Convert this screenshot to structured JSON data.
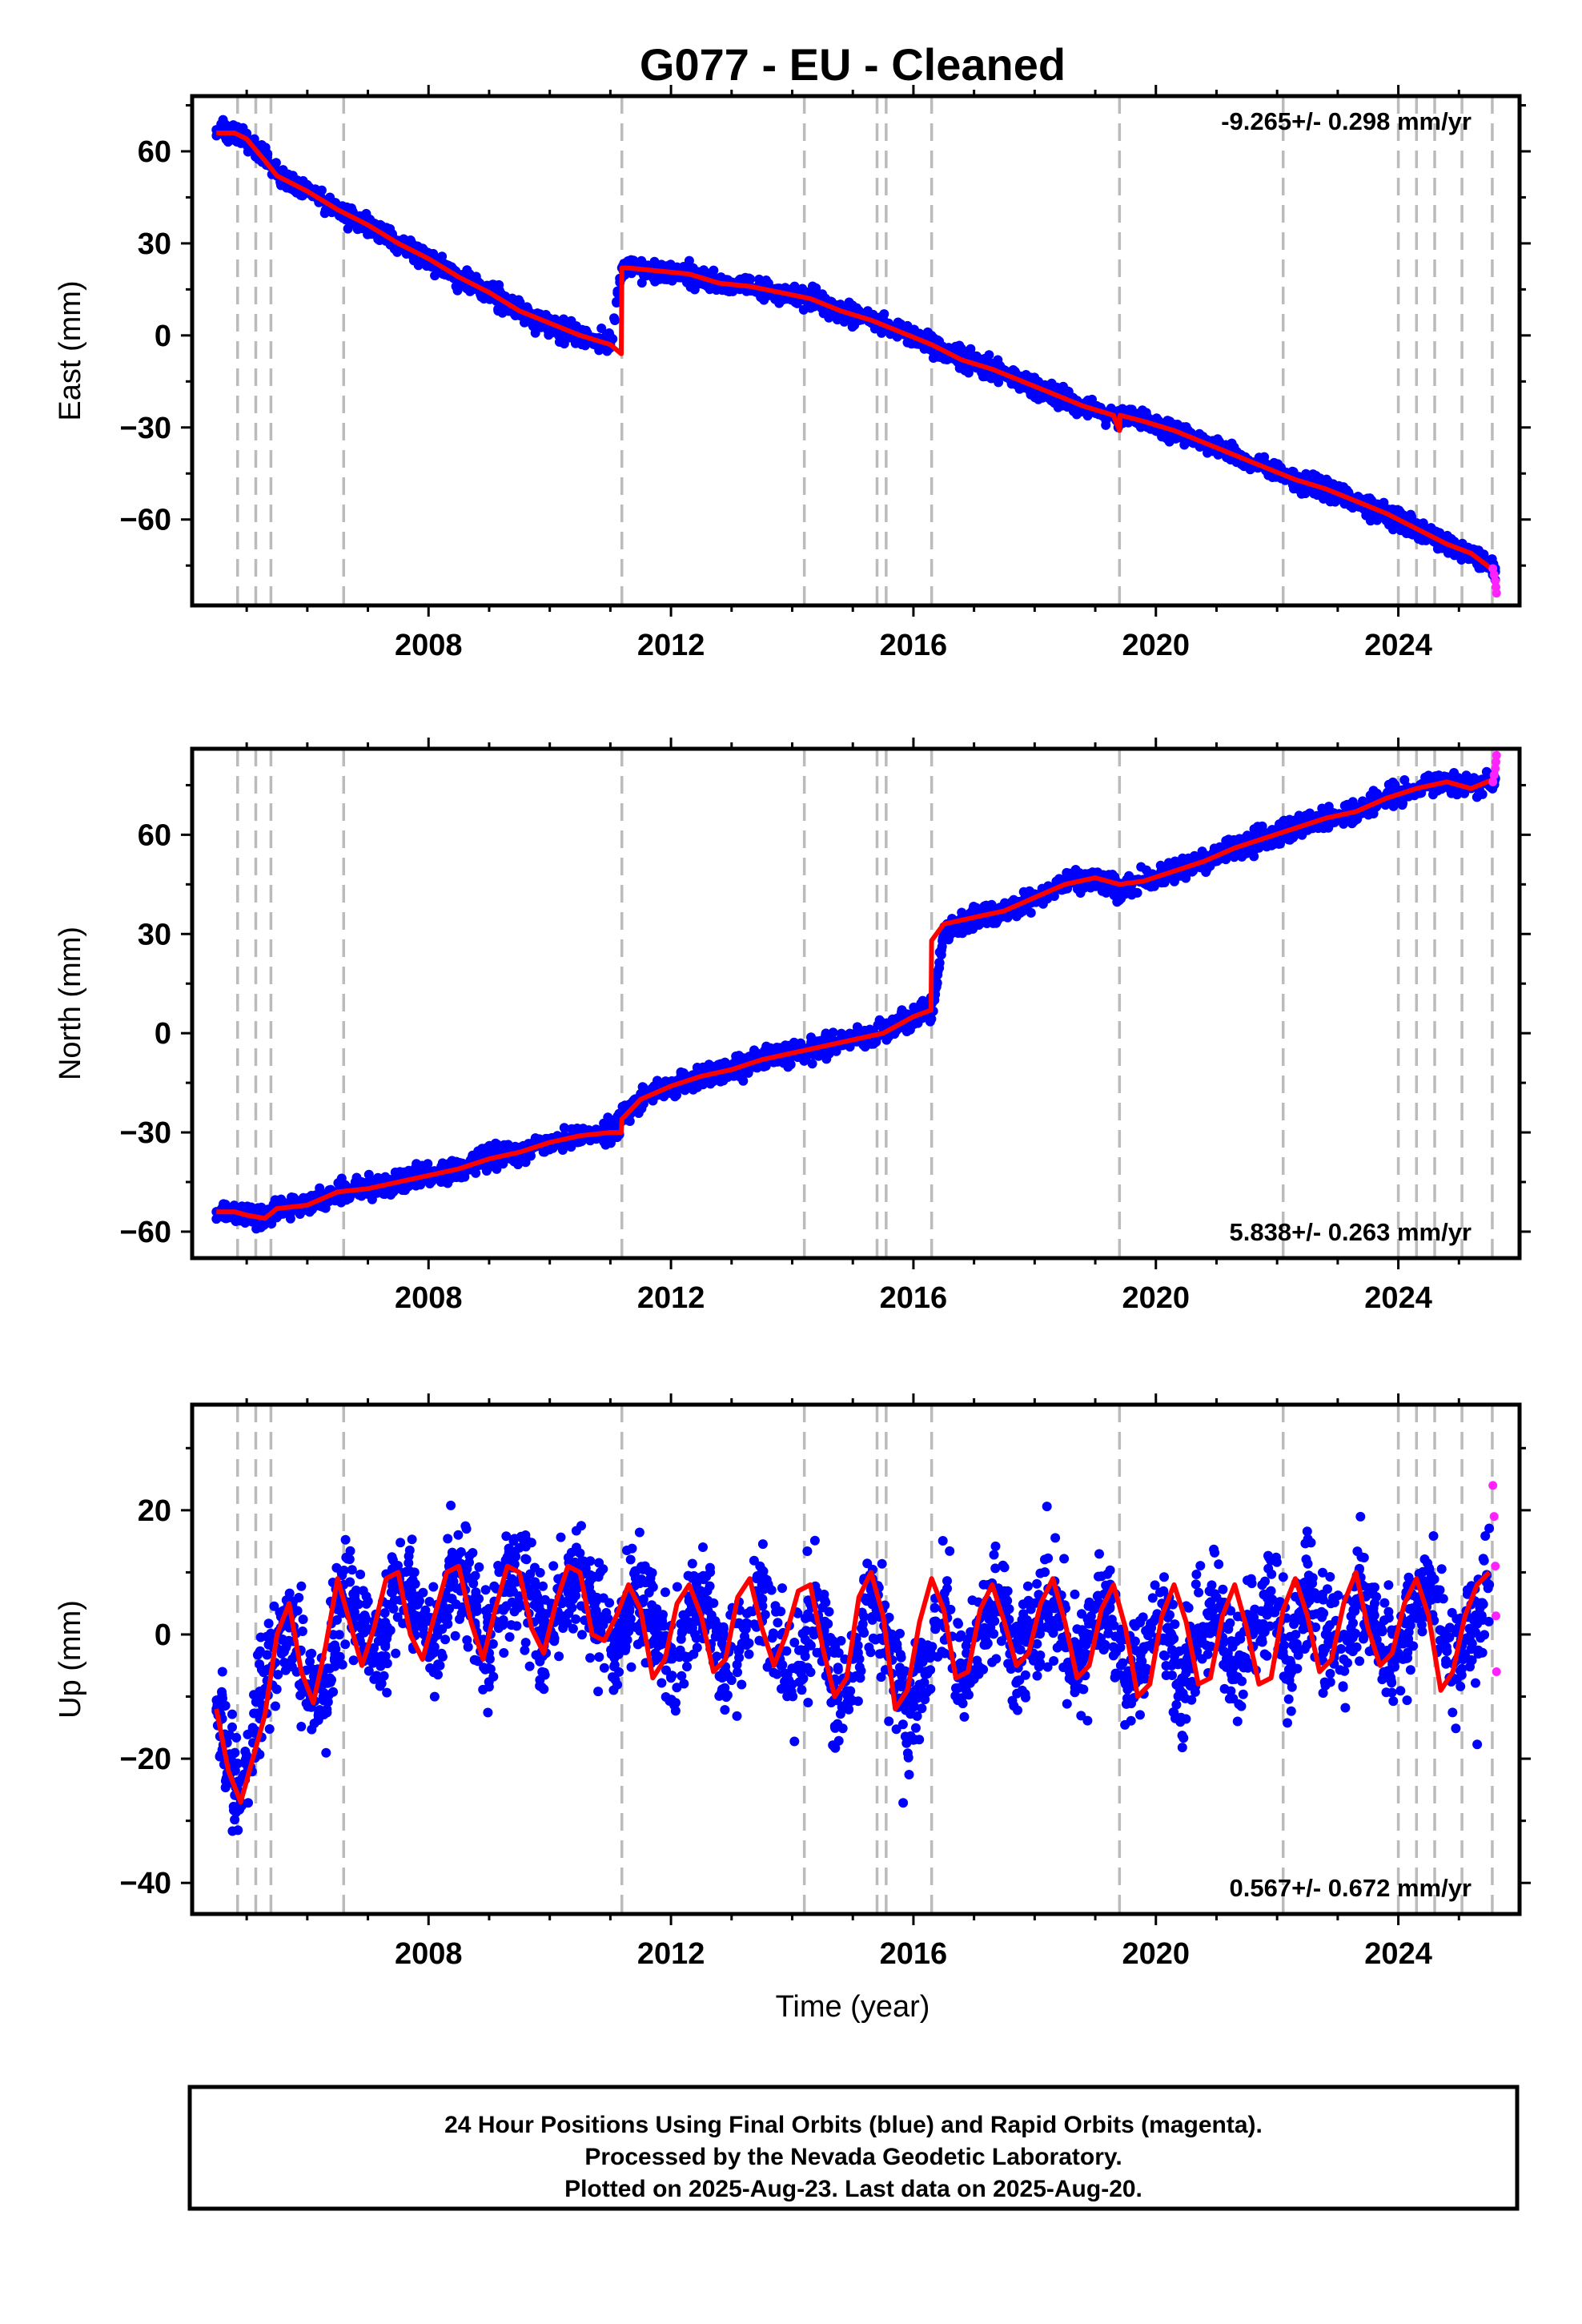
{
  "title": "G077  - EU - Cleaned",
  "xlabel": "Time (year)",
  "colors": {
    "final_orbits": "#0000ff",
    "rapid_orbits": "#ff22ff",
    "model": "#ff0000",
    "event_lines": "#bbbbbb"
  },
  "footer": {
    "line1": "24 Hour Positions Using Final Orbits (blue) and Rapid Orbits (magenta).",
    "line2": "Processed by the Nevada Geodetic Laboratory.",
    "line3": "Plotted on 2025-Aug-23. Last data on 2025-Aug-20."
  },
  "chart_data": [
    {
      "type": "scatter",
      "component": "east",
      "ylabel": "East (mm)",
      "rate_label": "-9.265+/- 0.298 mm/yr",
      "rate_position": "top-right",
      "xlim": [
        2004.1,
        2026.0
      ],
      "ylim": [
        -88,
        78
      ],
      "x_ticks": [
        2008,
        2012,
        2016,
        2020,
        2024
      ],
      "y_ticks": [
        -60,
        -30,
        0,
        30,
        60
      ],
      "event_lines": [
        2004.85,
        2005.15,
        2005.4,
        2006.6,
        2011.19,
        2014.2,
        2015.4,
        2015.55,
        2016.3,
        2019.4,
        2022.1,
        2024.0,
        2024.3,
        2024.6,
        2025.05,
        2025.55
      ],
      "series": [
        {
          "type": "scatter",
          "color": "#0000ff",
          "x": [
            2004.5,
            2004.8,
            2005.0,
            2005.3,
            2005.5,
            2006.0,
            2006.5,
            2007.0,
            2007.5,
            2008.0,
            2008.5,
            2009.0,
            2009.5,
            2010.0,
            2010.5,
            2011.0,
            2011.19,
            2011.3,
            2011.8,
            2012.3,
            2012.8,
            2013.3,
            2013.8,
            2014.3,
            2014.8,
            2015.3,
            2015.8,
            2016.3,
            2016.8,
            2017.3,
            2017.8,
            2018.3,
            2018.8,
            2019.3,
            2019.41,
            2019.8,
            2020.3,
            2020.8,
            2021.3,
            2021.8,
            2022.3,
            2022.8,
            2023.3,
            2023.8,
            2024.3,
            2024.8,
            2025.2,
            2025.6
          ],
          "y": [
            67,
            66,
            64,
            58,
            52,
            47,
            41,
            36,
            30,
            25,
            19,
            14,
            8,
            3,
            0,
            -3,
            22,
            22,
            21,
            20,
            17,
            16,
            14,
            12,
            8,
            5,
            1,
            -3,
            -8,
            -11,
            -15,
            -19,
            -23,
            -26,
            -26,
            -28,
            -31,
            -35,
            -39,
            -43,
            -47,
            -50,
            -54,
            -58,
            -63,
            -68,
            -71,
            -77
          ]
        },
        {
          "type": "scatter",
          "color": "#ff22ff",
          "x": [
            2025.56,
            2025.58,
            2025.6,
            2025.61,
            2025.62
          ],
          "y": [
            -76,
            -78,
            -80,
            -82,
            -84
          ]
        },
        {
          "type": "line",
          "color": "#ff0000",
          "x": [
            2004.5,
            2004.8,
            2005.0,
            2005.3,
            2005.5,
            2006.0,
            2006.5,
            2007.0,
            2007.5,
            2008.0,
            2008.5,
            2009.0,
            2009.5,
            2010.0,
            2010.5,
            2011.0,
            2011.18,
            2011.19,
            2011.3,
            2011.8,
            2012.3,
            2012.8,
            2013.3,
            2013.8,
            2014.3,
            2014.8,
            2015.3,
            2015.8,
            2016.3,
            2016.8,
            2017.3,
            2017.8,
            2018.3,
            2018.8,
            2019.3,
            2019.4,
            2019.41,
            2019.8,
            2020.3,
            2020.8,
            2021.3,
            2021.8,
            2022.3,
            2022.8,
            2023.3,
            2023.8,
            2024.3,
            2024.8,
            2025.2,
            2025.6
          ],
          "y": [
            66,
            66,
            64,
            57,
            52,
            47,
            41,
            36,
            30,
            25,
            19,
            14,
            8,
            4,
            0,
            -3,
            -6,
            22,
            22,
            21,
            20,
            17,
            16,
            14,
            12,
            8,
            5,
            1,
            -3,
            -8,
            -11,
            -15,
            -19,
            -23,
            -26,
            -31,
            -26,
            -28,
            -31,
            -35,
            -39,
            -43,
            -47,
            -50,
            -54,
            -58,
            -63,
            -68,
            -71,
            -77
          ]
        }
      ]
    },
    {
      "type": "scatter",
      "component": "north",
      "ylabel": "North (mm)",
      "rate_label": "5.838+/- 0.263 mm/yr",
      "rate_position": "bottom-right",
      "xlim": [
        2004.1,
        2026.0
      ],
      "ylim": [
        -68,
        86
      ],
      "x_ticks": [
        2008,
        2012,
        2016,
        2020,
        2024
      ],
      "y_ticks": [
        -60,
        -30,
        0,
        30,
        60
      ],
      "event_lines": [
        2004.85,
        2005.15,
        2005.4,
        2006.6,
        2011.19,
        2014.2,
        2015.4,
        2015.55,
        2016.3,
        2019.4,
        2022.1,
        2024.0,
        2024.3,
        2024.6,
        2025.05,
        2025.55
      ],
      "series": [
        {
          "type": "scatter",
          "color": "#0000ff",
          "x": [
            2004.5,
            2004.8,
            2005.0,
            2005.3,
            2005.5,
            2006.0,
            2006.5,
            2007.0,
            2007.5,
            2008.0,
            2008.5,
            2009.0,
            2009.5,
            2010.0,
            2010.5,
            2011.0,
            2011.19,
            2011.5,
            2012.0,
            2012.5,
            2013.0,
            2013.5,
            2014.0,
            2014.5,
            2015.0,
            2015.5,
            2016.0,
            2016.3,
            2016.5,
            2017.0,
            2017.5,
            2018.0,
            2018.5,
            2019.0,
            2019.4,
            2019.8,
            2020.3,
            2020.8,
            2021.3,
            2021.8,
            2022.3,
            2022.8,
            2023.3,
            2023.8,
            2024.3,
            2024.8,
            2025.2,
            2025.6
          ],
          "y": [
            -54,
            -54,
            -55,
            -56,
            -53,
            -52,
            -48,
            -47,
            -45,
            -43,
            -41,
            -38,
            -36,
            -33,
            -31,
            -30,
            -26,
            -20,
            -16,
            -13,
            -11,
            -8,
            -6,
            -4,
            -2,
            0,
            5,
            7,
            30,
            35,
            37,
            41,
            45,
            47,
            43,
            46,
            49,
            52,
            56,
            59,
            62,
            65,
            67,
            71,
            74,
            76,
            74,
            77
          ]
        },
        {
          "type": "scatter",
          "color": "#ff22ff",
          "x": [
            2025.56,
            2025.58,
            2025.6,
            2025.61,
            2025.62
          ],
          "y": [
            76,
            78,
            80,
            82,
            84
          ]
        },
        {
          "type": "line",
          "color": "#ff0000",
          "x": [
            2004.5,
            2004.8,
            2005.0,
            2005.3,
            2005.5,
            2006.0,
            2006.5,
            2007.0,
            2007.5,
            2008.0,
            2008.5,
            2009.0,
            2009.5,
            2010.0,
            2010.5,
            2011.0,
            2011.18,
            2011.19,
            2011.5,
            2012.0,
            2012.5,
            2013.0,
            2013.5,
            2014.0,
            2014.5,
            2015.0,
            2015.5,
            2016.0,
            2016.29,
            2016.3,
            2016.5,
            2017.0,
            2017.5,
            2018.0,
            2018.5,
            2019.0,
            2019.4,
            2019.8,
            2020.3,
            2020.8,
            2021.3,
            2021.8,
            2022.3,
            2022.8,
            2023.3,
            2023.8,
            2024.3,
            2024.8,
            2025.2,
            2025.6
          ],
          "y": [
            -54,
            -54,
            -55,
            -56,
            -53,
            -52,
            -48,
            -47,
            -45,
            -43,
            -41,
            -38,
            -36,
            -33,
            -31,
            -30,
            -30,
            -26,
            -20,
            -16,
            -13,
            -11,
            -8,
            -6,
            -4,
            -2,
            0,
            5,
            7,
            28,
            33,
            35,
            37,
            41,
            45,
            47,
            45,
            46,
            49,
            52,
            56,
            59,
            62,
            65,
            67,
            71,
            74,
            76,
            74,
            77
          ]
        }
      ]
    },
    {
      "type": "scatter",
      "component": "up",
      "ylabel": "Up (mm)",
      "rate_label": "0.567+/- 0.672 mm/yr",
      "rate_position": "bottom-right",
      "xlim": [
        2004.1,
        2026.0
      ],
      "ylim": [
        -45,
        37
      ],
      "x_ticks": [
        2008,
        2012,
        2016,
        2020,
        2024
      ],
      "y_ticks": [
        -40,
        -20,
        0,
        20
      ],
      "event_lines": [
        2004.85,
        2005.15,
        2005.4,
        2006.6,
        2011.19,
        2014.2,
        2015.4,
        2015.55,
        2016.3,
        2019.4,
        2022.1,
        2024.0,
        2024.3,
        2024.6,
        2025.05,
        2025.55
      ],
      "series": [
        {
          "type": "scatter",
          "color": "#0000ff",
          "x": [
            2004.5,
            2004.7,
            2004.9,
            2005.1,
            2005.4,
            2005.7,
            2006.0,
            2006.3,
            2006.6,
            2006.9,
            2007.2,
            2007.5,
            2007.8,
            2008.1,
            2008.4,
            2008.7,
            2009.0,
            2009.3,
            2009.6,
            2009.9,
            2010.2,
            2010.5,
            2010.8,
            2011.1,
            2011.4,
            2011.7,
            2012.0,
            2012.3,
            2012.6,
            2012.9,
            2013.2,
            2013.5,
            2013.8,
            2014.1,
            2014.4,
            2014.7,
            2015.0,
            2015.3,
            2015.6,
            2015.9,
            2016.2,
            2016.5,
            2016.8,
            2017.1,
            2017.4,
            2017.7,
            2018.0,
            2018.3,
            2018.6,
            2018.9,
            2019.2,
            2019.5,
            2019.8,
            2020.1,
            2020.4,
            2020.7,
            2021.0,
            2021.3,
            2021.6,
            2021.9,
            2022.2,
            2022.5,
            2022.8,
            2023.1,
            2023.4,
            2023.7,
            2024.0,
            2024.3,
            2024.6,
            2024.9,
            2025.2,
            2025.5
          ],
          "y": [
            -12,
            -20,
            -27,
            -15,
            -6,
            3,
            -8,
            -10,
            8,
            1,
            -4,
            9,
            3,
            -2,
            10,
            5,
            -3,
            8,
            9,
            0,
            5,
            10,
            3,
            -2,
            6,
            4,
            -7,
            2,
            7,
            -6,
            1,
            8,
            -4,
            -5,
            6,
            -9,
            -7,
            8,
            -3,
            -12,
            -6,
            5,
            -7,
            0,
            7,
            -5,
            1,
            7,
            -6,
            0,
            6,
            -8,
            -2,
            5,
            -9,
            1,
            6,
            -7,
            0,
            7,
            -6,
            7,
            0,
            -4,
            8,
            -2,
            -3,
            6,
            7,
            -7,
            0,
            8
          ]
        },
        {
          "type": "scatter",
          "color": "#ff22ff",
          "x": [
            2025.56,
            2025.58,
            2025.6,
            2025.61,
            2025.62
          ],
          "y": [
            24,
            19,
            11,
            3,
            -6
          ]
        },
        {
          "type": "line",
          "color": "#ff0000",
          "x": [
            2004.5,
            2004.7,
            2004.9,
            2005.1,
            2005.3,
            2005.5,
            2005.7,
            2005.9,
            2006.1,
            2006.3,
            2006.5,
            2006.7,
            2006.9,
            2007.1,
            2007.3,
            2007.5,
            2007.7,
            2007.9,
            2008.1,
            2008.3,
            2008.5,
            2008.7,
            2008.9,
            2009.1,
            2009.3,
            2009.5,
            2009.7,
            2009.9,
            2010.1,
            2010.3,
            2010.5,
            2010.7,
            2010.9,
            2011.1,
            2011.3,
            2011.5,
            2011.7,
            2011.9,
            2012.1,
            2012.3,
            2012.5,
            2012.7,
            2012.9,
            2013.1,
            2013.3,
            2013.5,
            2013.7,
            2013.9,
            2014.1,
            2014.3,
            2014.5,
            2014.7,
            2014.9,
            2015.1,
            2015.3,
            2015.5,
            2015.7,
            2015.9,
            2016.1,
            2016.3,
            2016.5,
            2016.7,
            2016.9,
            2017.1,
            2017.3,
            2017.5,
            2017.7,
            2017.9,
            2018.1,
            2018.3,
            2018.5,
            2018.7,
            2018.9,
            2019.1,
            2019.3,
            2019.5,
            2019.7,
            2019.9,
            2020.1,
            2020.3,
            2020.5,
            2020.7,
            2020.9,
            2021.1,
            2021.3,
            2021.5,
            2021.7,
            2021.9,
            2022.1,
            2022.3,
            2022.5,
            2022.7,
            2022.9,
            2023.1,
            2023.3,
            2023.5,
            2023.7,
            2023.9,
            2024.1,
            2024.3,
            2024.5,
            2024.7,
            2024.9,
            2025.1,
            2025.3,
            2025.5
          ],
          "y": [
            -12,
            -22,
            -27,
            -20,
            -13,
            0,
            5,
            -6,
            -11,
            -2,
            9,
            2,
            -5,
            1,
            9,
            10,
            0,
            -4,
            3,
            10,
            11,
            2,
            -4,
            4,
            11,
            10,
            1,
            -3,
            5,
            11,
            10,
            0,
            -1,
            3,
            8,
            4,
            -7,
            -4,
            5,
            8,
            3,
            -6,
            -4,
            6,
            9,
            1,
            -5,
            0,
            7,
            8,
            -2,
            -10,
            -7,
            6,
            10,
            3,
            -12,
            -9,
            2,
            9,
            4,
            -7,
            -6,
            4,
            8,
            2,
            -5,
            -3,
            5,
            9,
            2,
            -7,
            -5,
            4,
            8,
            1,
            -10,
            -8,
            3,
            8,
            2,
            -8,
            -7,
            3,
            8,
            1,
            -8,
            -7,
            4,
            9,
            3,
            -6,
            -4,
            5,
            10,
            1,
            -5,
            -3,
            5,
            9,
            3,
            -9,
            -6,
            3,
            8,
            10
          ]
        }
      ]
    }
  ]
}
